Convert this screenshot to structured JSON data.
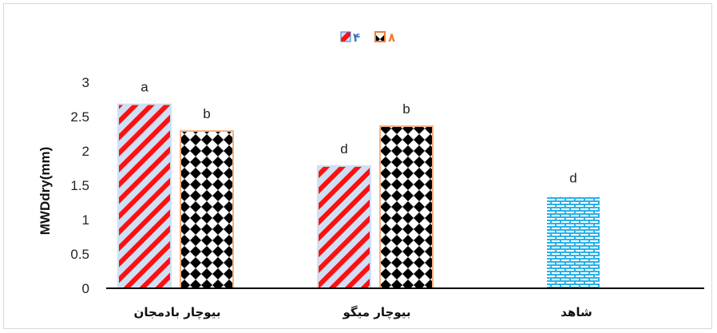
{
  "chart_data": {
    "type": "bar",
    "categories": [
      "بیوچار بادمجان",
      "بیوچار میگو",
      "شاهد"
    ],
    "ylabel": "MWDdry(mm)",
    "xlabel": "",
    "ylim": [
      0,
      3
    ],
    "yticks": [
      "0",
      "0.5",
      "1",
      "1.5",
      "2",
      "2.5",
      "3"
    ],
    "grid": false,
    "legend_position": "top",
    "series": [
      {
        "name": "۴",
        "values": [
          2.68,
          1.78,
          null
        ],
        "labels": [
          "a",
          "d",
          null
        ],
        "pattern": "red-diagonal-stripes",
        "color": "#ff0000"
      },
      {
        "name": "۸",
        "values": [
          2.29,
          2.36,
          null
        ],
        "labels": [
          "b",
          "b",
          null
        ],
        "pattern": "black-diamond-checker",
        "color": "#000000"
      }
    ],
    "control": {
      "category_index": 2,
      "value": 1.33,
      "label": "d",
      "pattern": "blue-brick",
      "color": "#29b1e8"
    }
  },
  "colors": {
    "stripe_red": "#ff0000",
    "stripe_light": "#cfe0f5",
    "legend_series1": "#4472c4",
    "legend_series2": "#ed7d31",
    "checker_border": "#f4b183",
    "control_blue": "#29b1e8"
  }
}
